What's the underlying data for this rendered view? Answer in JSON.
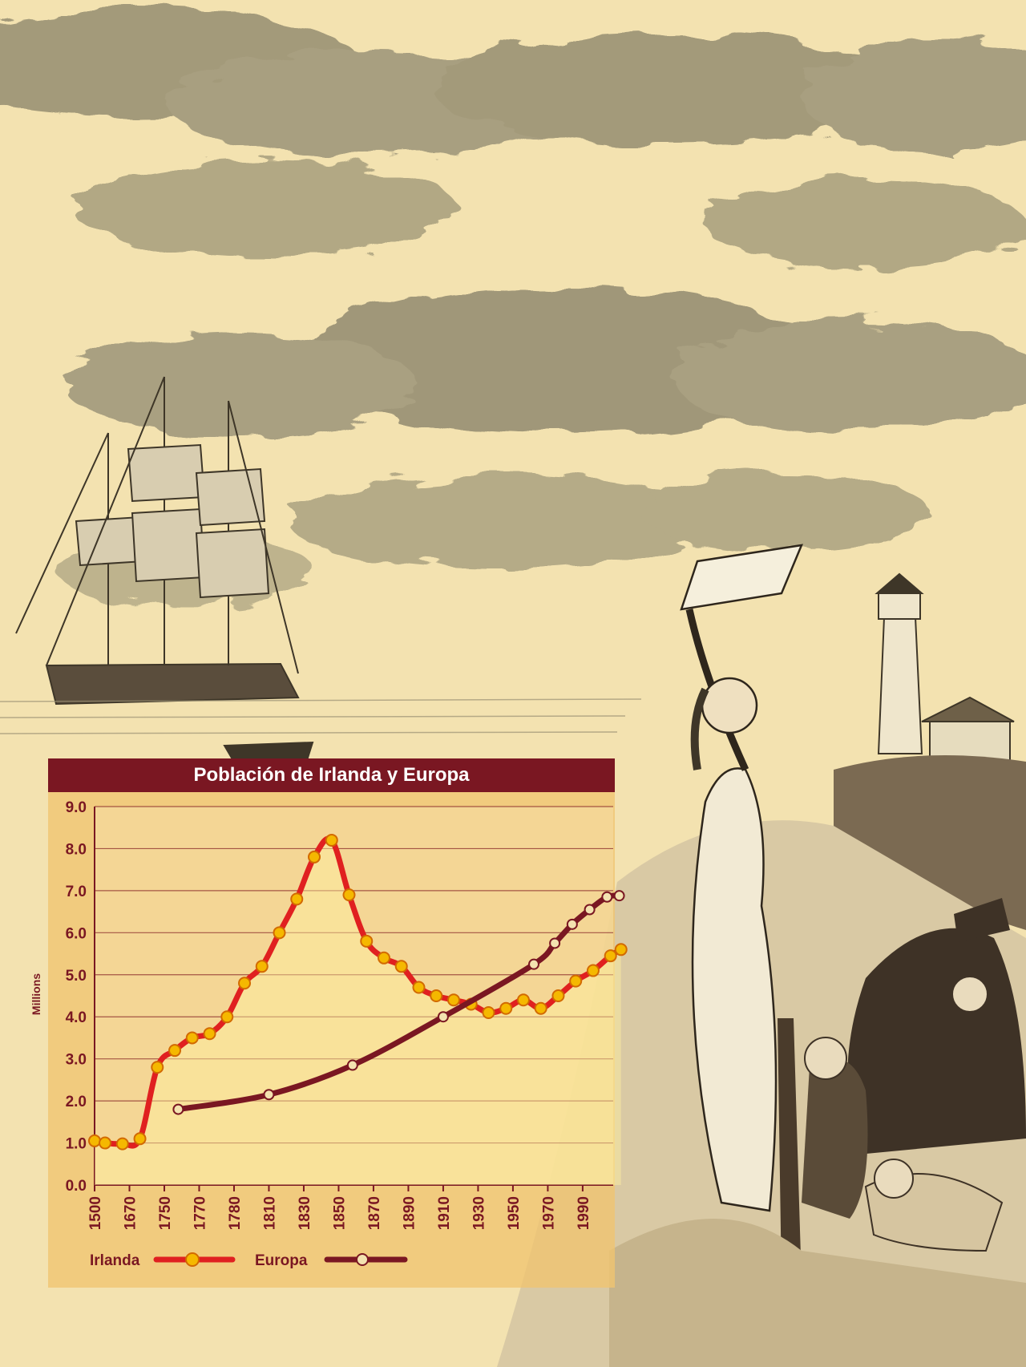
{
  "chart_data": {
    "type": "line",
    "title": "Población de Irlanda y Europa",
    "ylabel": "Millions",
    "xlabel": "",
    "ylim": [
      0,
      9
    ],
    "yticks": [
      "0.0",
      "1.0",
      "2.0",
      "3.0",
      "4.0",
      "5.0",
      "6.0",
      "7.0",
      "8.0",
      "9.0"
    ],
    "xticks": [
      "1500",
      "1670",
      "1750",
      "1770",
      "1780",
      "1810",
      "1830",
      "1850",
      "1870",
      "1890",
      "1910",
      "1930",
      "1950",
      "1970",
      "1990"
    ],
    "grid": true,
    "legend_position": "bottom",
    "series": [
      {
        "name": "Irlanda",
        "color": "#e02020",
        "marker_color": "#f5b800",
        "points": [
          [
            0,
            1.05
          ],
          [
            0.3,
            1.0
          ],
          [
            0.8,
            0.98
          ],
          [
            1.3,
            1.1
          ],
          [
            1.8,
            2.8
          ],
          [
            2.3,
            3.2
          ],
          [
            2.8,
            3.5
          ],
          [
            3.3,
            3.6
          ],
          [
            3.8,
            4.0
          ],
          [
            4.3,
            4.8
          ],
          [
            4.8,
            5.2
          ],
          [
            5.3,
            6.0
          ],
          [
            5.8,
            6.8
          ],
          [
            6.3,
            7.8
          ],
          [
            6.8,
            8.2
          ],
          [
            7.3,
            6.9
          ],
          [
            7.8,
            5.8
          ],
          [
            8.3,
            5.4
          ],
          [
            8.8,
            5.2
          ],
          [
            9.3,
            4.7
          ],
          [
            9.8,
            4.5
          ],
          [
            10.3,
            4.4
          ],
          [
            10.8,
            4.3
          ],
          [
            11.3,
            4.1
          ],
          [
            11.8,
            4.2
          ],
          [
            12.3,
            4.4
          ],
          [
            12.8,
            4.2
          ],
          [
            13.3,
            4.5
          ],
          [
            13.8,
            4.85
          ],
          [
            14.3,
            5.1
          ],
          [
            14.8,
            5.45
          ],
          [
            15.1,
            5.6
          ]
        ]
      },
      {
        "name": "Europa",
        "color": "#7a1722",
        "marker_color": "#f3e2b0",
        "points": [
          [
            2.4,
            1.8
          ],
          [
            5.0,
            2.15
          ],
          [
            7.4,
            2.85
          ],
          [
            10.0,
            4.0
          ],
          [
            12.6,
            5.25
          ],
          [
            13.2,
            5.75
          ],
          [
            13.7,
            6.2
          ],
          [
            14.2,
            6.55
          ],
          [
            14.7,
            6.85
          ],
          [
            15.05,
            6.88
          ]
        ]
      }
    ]
  }
}
